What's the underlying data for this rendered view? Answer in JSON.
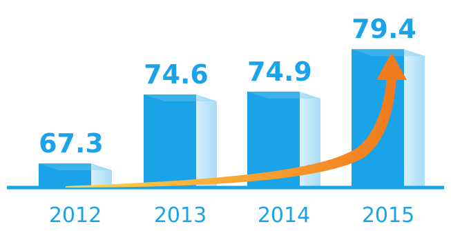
{
  "chart_data": {
    "type": "bar",
    "categories": [
      "2012",
      "2013",
      "2014",
      "2015"
    ],
    "values": [
      67.3,
      74.6,
      74.9,
      79.4
    ],
    "value_labels": [
      "67.3",
      "74.6",
      "74.9",
      "79.4"
    ],
    "title": "",
    "xlabel": "",
    "ylabel": "",
    "ylim": [
      64,
      80
    ],
    "grid": false,
    "legend": "none",
    "trend_arrow": true
  },
  "colors": {
    "bar_front": "#1aa3e8",
    "bar_side": "#bfe4f7",
    "bar_top": "#7ccbf2",
    "label": "#1aa3e8",
    "baseline": "#1aa3e8",
    "arrow_start": "#ffd54a",
    "arrow_end": "#f07b1e"
  }
}
